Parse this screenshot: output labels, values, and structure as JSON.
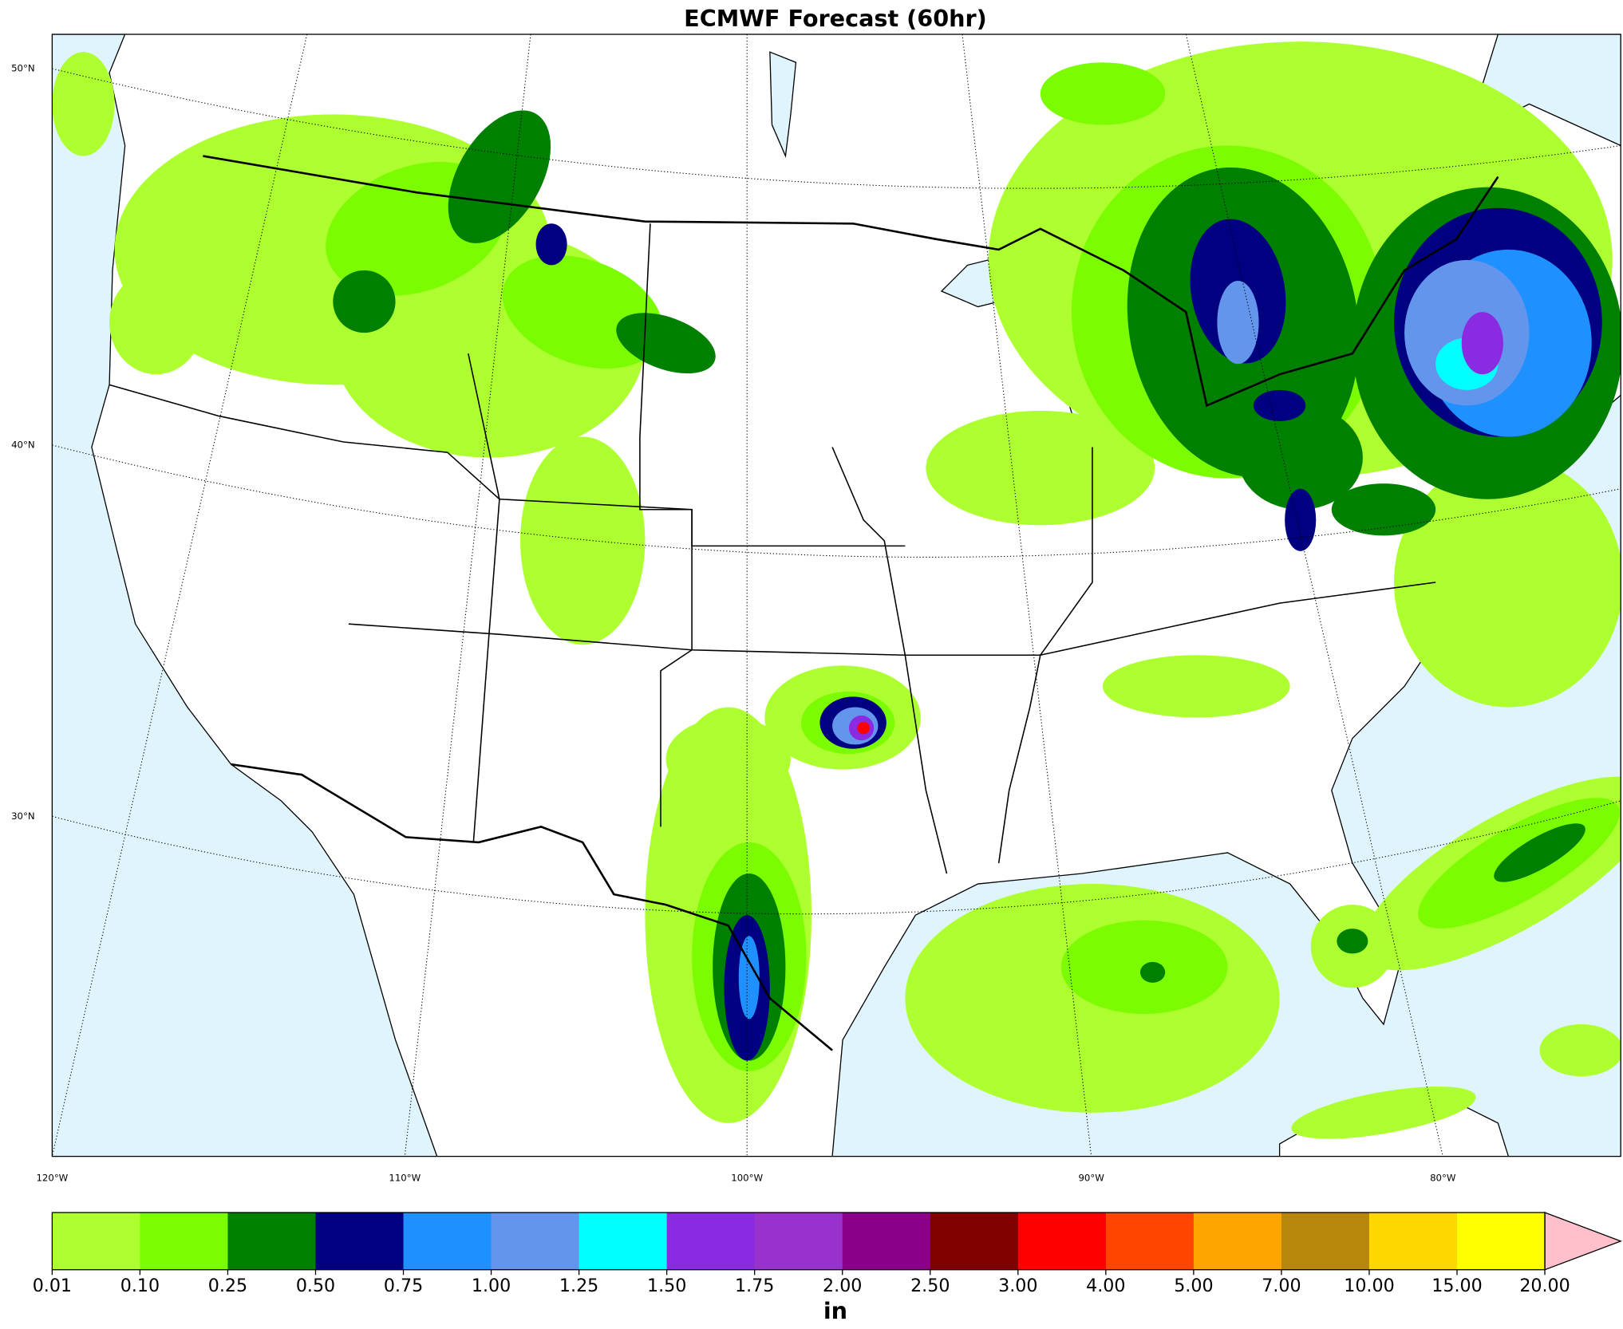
{
  "title": "ECMWF Forecast (60hr)",
  "map": {
    "lat_labels": [
      "50°N",
      "40°N",
      "30°N"
    ],
    "lon_labels": [
      "120°W",
      "110°W",
      "100°W",
      "90°W",
      "80°W"
    ]
  },
  "colorbar": {
    "label": "in",
    "levels": [
      {
        "value": 0.01,
        "label": "0.01"
      },
      {
        "value": 0.1,
        "label": "0.10"
      },
      {
        "value": 0.25,
        "label": "0.25"
      },
      {
        "value": 0.5,
        "label": "0.50"
      },
      {
        "value": 0.75,
        "label": "0.75"
      },
      {
        "value": 1,
        "label": "1.00"
      },
      {
        "value": 1.25,
        "label": "1.25"
      },
      {
        "value": 1.5,
        "label": "1.50"
      },
      {
        "value": 1.75,
        "label": "1.75"
      },
      {
        "value": 2,
        "label": "2.00"
      },
      {
        "value": 2.5,
        "label": "2.50"
      },
      {
        "value": 3,
        "label": "3.00"
      },
      {
        "value": 4,
        "label": "4.00"
      },
      {
        "value": 5,
        "label": "5.00"
      },
      {
        "value": 7,
        "label": "7.00"
      },
      {
        "value": 10,
        "label": "10.00"
      },
      {
        "value": 15,
        "label": "15.00"
      },
      {
        "value": 20,
        "label": "20.00"
      }
    ],
    "colors": [
      "#adff2f",
      "#7cfc00",
      "#008000",
      "#000080",
      "#1e90ff",
      "#6495ed",
      "#00ffff",
      "#8a2be2",
      "#9932cc",
      "#8b008b",
      "#800000",
      "#ff0000",
      "#ff4500",
      "#ffa500",
      "#b8860b",
      "#ffd700",
      "#ffff00"
    ],
    "extend_color": "#ffc0cb"
  }
}
